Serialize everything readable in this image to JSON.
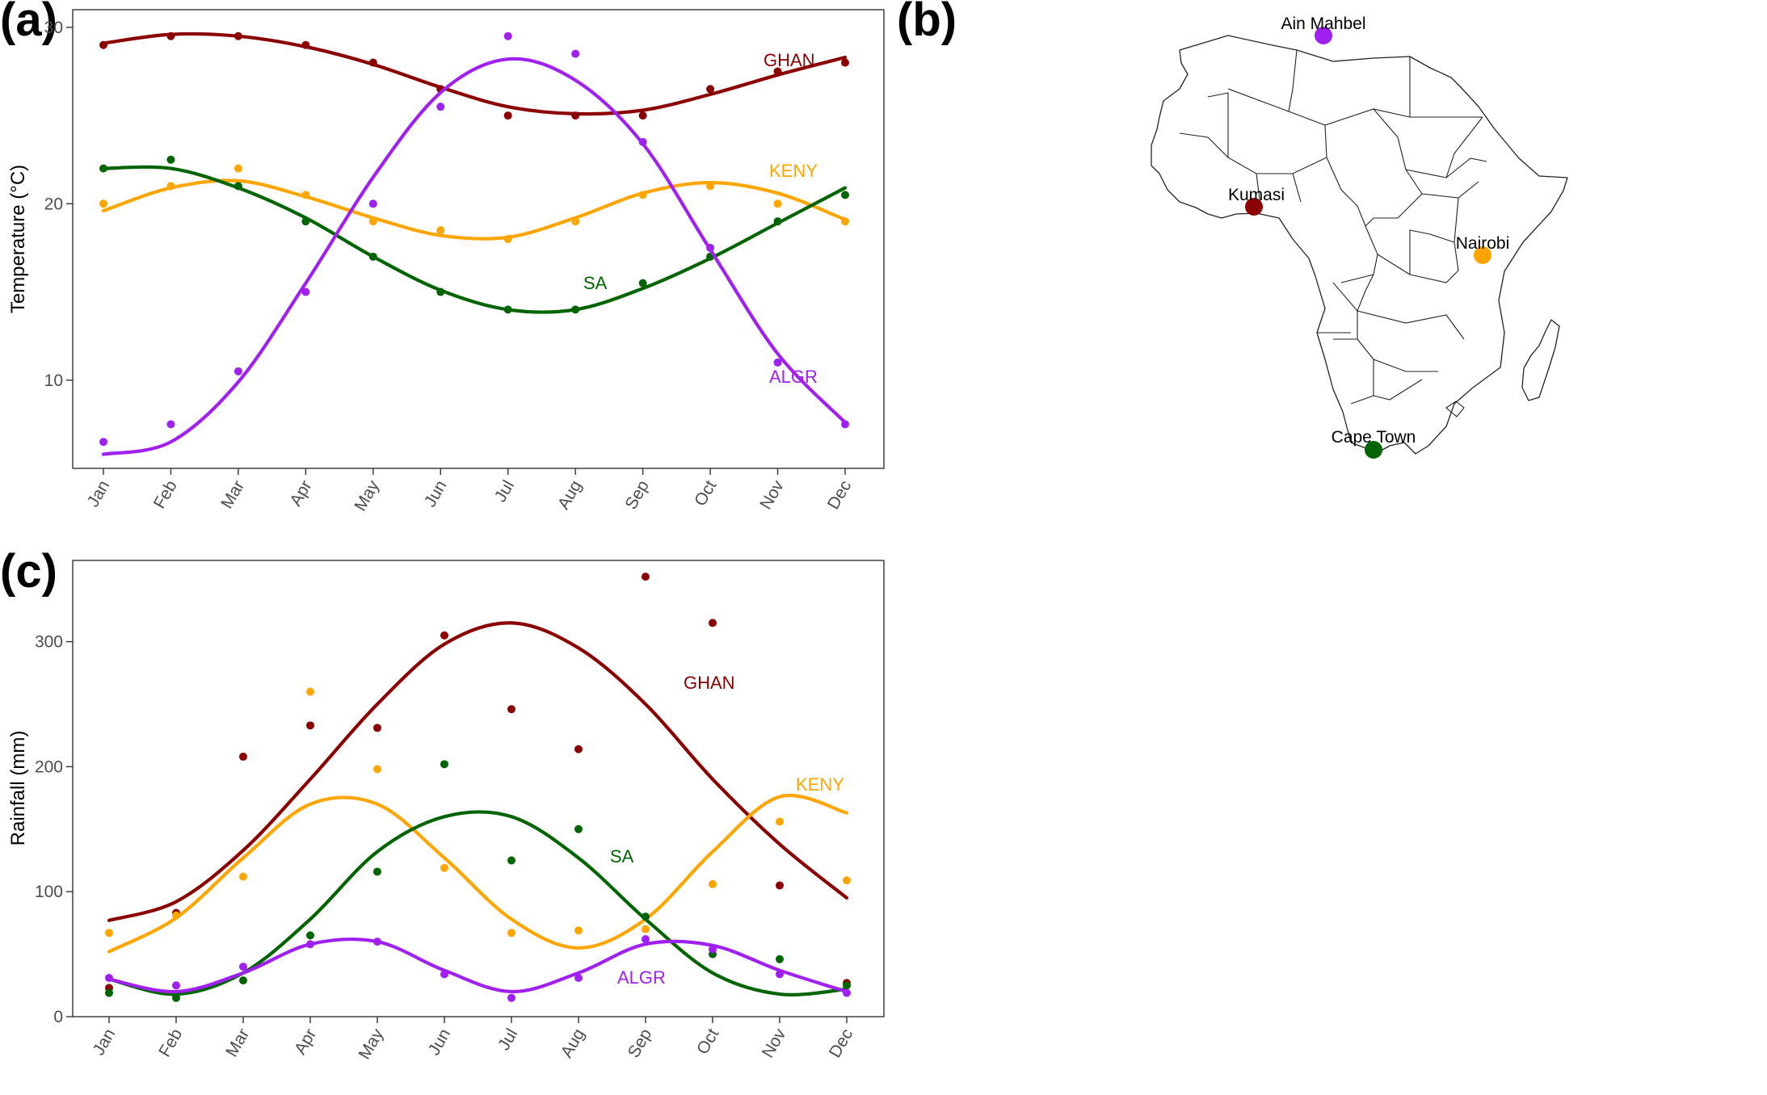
{
  "panels": {
    "a": "(a)",
    "b": "(b)",
    "c": "(c)"
  },
  "colors": {
    "GHAN": "#8b0000",
    "KENY": "#ffa500",
    "SA": "#006400",
    "ALGR": "#a020f0"
  },
  "map": {
    "cities": [
      {
        "key": "ALGR",
        "name": "Ain Mahbel"
      },
      {
        "key": "GHAN",
        "name": "Kumasi"
      },
      {
        "key": "KENY",
        "name": "Nairobi"
      },
      {
        "key": "SA",
        "name": "Cape Town"
      }
    ]
  },
  "chart_data": [
    {
      "panel": "a",
      "type": "scatter",
      "trend": "smooth-curve",
      "ylabel": "Temperature (°C)",
      "xlabel": "",
      "ylim": [
        5,
        31
      ],
      "yticks": [
        10,
        20,
        30
      ],
      "categories": [
        "Jan",
        "Feb",
        "Mar",
        "Apr",
        "May",
        "Jun",
        "Jul",
        "Aug",
        "Sep",
        "Oct",
        "Nov",
        "Dec"
      ],
      "grid": false,
      "series": [
        {
          "name": "GHAN",
          "values": [
            29,
            29.5,
            29.5,
            29,
            28,
            26.5,
            25,
            25,
            25,
            26.5,
            27.5,
            28
          ],
          "fit": [
            29.1,
            29.6,
            29.5,
            28.9,
            27.9,
            26.6,
            25.5,
            25.1,
            25.3,
            26.2,
            27.3,
            28.3
          ]
        },
        {
          "name": "KENY",
          "values": [
            20,
            21,
            22,
            20.5,
            19,
            18.5,
            18,
            19,
            20.5,
            21,
            20,
            19
          ],
          "fit": [
            19.6,
            20.9,
            21.3,
            20.4,
            19.2,
            18.2,
            18.1,
            19.2,
            20.6,
            21.2,
            20.6,
            19.1
          ]
        },
        {
          "name": "SA",
          "values": [
            22,
            22.5,
            21,
            19,
            17,
            15,
            14,
            14,
            15.5,
            17,
            19,
            20.5
          ],
          "fit": [
            22.0,
            22.0,
            20.9,
            19.2,
            17.0,
            15.1,
            14.0,
            14.0,
            15.2,
            16.9,
            18.9,
            20.9
          ]
        },
        {
          "name": "ALGR",
          "values": [
            6.5,
            7.5,
            10.5,
            15,
            20,
            25.5,
            29.5,
            28.5,
            23.5,
            17.5,
            11,
            7.5
          ],
          "fit": [
            5.8,
            6.5,
            9.9,
            15.5,
            21.5,
            26.3,
            28.2,
            27.0,
            23.4,
            17.4,
            11.5,
            7.6
          ]
        }
      ]
    },
    {
      "panel": "c",
      "type": "scatter",
      "trend": "smooth-curve",
      "ylabel": "Rainfall (mm)",
      "xlabel": "",
      "ylim": [
        0,
        365
      ],
      "yticks": [
        0,
        100,
        200,
        300
      ],
      "categories": [
        "Jan",
        "Feb",
        "Mar",
        "Apr",
        "May",
        "Jun",
        "Jul",
        "Aug",
        "Sep",
        "Oct",
        "Nov",
        "Dec"
      ],
      "grid": false,
      "series": [
        {
          "name": "GHAN",
          "values": [
            23,
            83,
            208,
            233,
            231,
            305,
            246,
            214,
            352,
            315,
            105,
            27
          ],
          "fit": [
            77,
            92,
            133,
            190,
            250,
            298,
            315,
            295,
            250,
            190,
            138,
            95
          ]
        },
        {
          "name": "KENY",
          "values": [
            67,
            81,
            112,
            260,
            198,
            119,
            67,
            69,
            70,
            106,
            156,
            109
          ],
          "fit": [
            52,
            79,
            127,
            170,
            170,
            127,
            78,
            55,
            78,
            132,
            176,
            163
          ]
        },
        {
          "name": "SA",
          "values": [
            19,
            15,
            29,
            65,
            116,
            202,
            125,
            150,
            80,
            50,
            46,
            25
          ],
          "fit": [
            30,
            18,
            35,
            78,
            132,
            160,
            160,
            127,
            78,
            35,
            18,
            22
          ]
        },
        {
          "name": "ALGR",
          "values": [
            31,
            25,
            40,
            58,
            60,
            34,
            15,
            31,
            62,
            54,
            34,
            19
          ],
          "fit": [
            30,
            20,
            35,
            58,
            60,
            37,
            20,
            35,
            58,
            57,
            37,
            20
          ]
        }
      ]
    }
  ]
}
